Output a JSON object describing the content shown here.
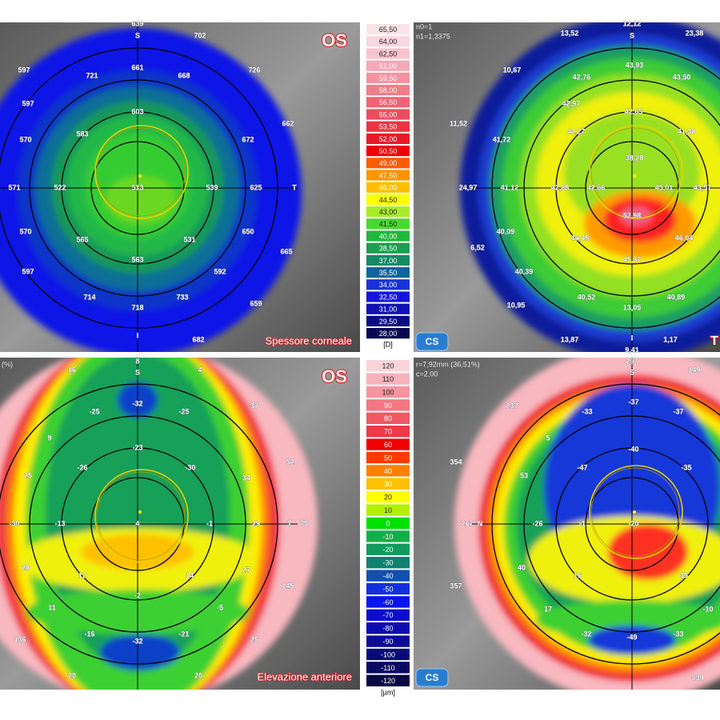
{
  "maps": {
    "top_left": {
      "eye_label": "OS",
      "title": "Spessore corneale",
      "axis_labels": {
        "top": "S",
        "right": "T",
        "bottom": "I",
        "top_value": "639"
      },
      "values": [
        "702",
        "597",
        "721",
        "661",
        "668",
        "726",
        "597",
        "603",
        "662",
        "570",
        "583",
        "672",
        "571",
        "522",
        "513",
        "539",
        "625",
        "570",
        "565",
        "531",
        "650",
        "597",
        "563",
        "665",
        "592",
        "714",
        "718",
        "733",
        "659",
        "682"
      ]
    },
    "top_right": {
      "info_lines": [
        "n0=1",
        "n1=1,3375"
      ],
      "axis_labels": {
        "top": "S",
        "bottom": "I",
        "right": "T",
        "top_value": "12,12",
        "bottom_value": "9,41",
        "left_value": "24,97"
      },
      "values": [
        "13,52",
        "23,38",
        "10,67",
        "42,76",
        "43,93",
        "43,50",
        "42,97",
        "42,65",
        "11,52",
        "41,72",
        "42,27",
        "41,38",
        "38,28",
        "41,12",
        "42,88",
        "42,66",
        "45,01",
        "43,57",
        "52,98",
        "40,09",
        "46,49",
        "46,04",
        "6,52",
        "45,37",
        "40,39",
        "40,52",
        "40,89",
        "13,05",
        "10,95",
        "13,87",
        "1,17"
      ],
      "logo": "CS"
    },
    "bottom_left": {
      "eye_label": "OS",
      "title": "Elevazione anteriore",
      "info_lines": [
        "(%)"
      ],
      "axis_labels": {
        "top": "S",
        "right": "T",
        "top_value": "8",
        "right_value": "75"
      },
      "values": [
        "16",
        "4",
        "-25",
        "-32",
        "-25",
        "37",
        "9",
        "-23",
        "52",
        "25",
        "-26",
        "-30",
        "34",
        "-30",
        "-13",
        "4",
        "-1",
        "29",
        "28",
        "12",
        "14",
        "27",
        "145",
        "11",
        "-2",
        "-5",
        "-16",
        "-32",
        "-21",
        "25",
        "136",
        "20",
        "20"
      ]
    },
    "bottom_right": {
      "info_lines": [
        "r=7,92mm (36,51%)",
        "c=2,00"
      ],
      "axis_labels": {
        "top": "S",
        "left": "N",
        "top_value": "297",
        "left_value": "267"
      },
      "values": [
        "237",
        "149",
        "-33",
        "-37",
        "-37",
        "5",
        "-40",
        "354",
        "53",
        "-47",
        "-35",
        "-26",
        "-1",
        "-20",
        "40",
        "16",
        "35",
        "357",
        "17",
        "-49",
        "-33",
        "-32",
        "-10",
        "339"
      ],
      "logo": "CS"
    }
  },
  "scales": {
    "dioptric": {
      "unit": "[D]",
      "steps": [
        {
          "label": "65,50",
          "color": "#fbe4ea"
        },
        {
          "label": "64,00",
          "color": "#fad6de"
        },
        {
          "label": "62,50",
          "color": "#f8c4cf"
        },
        {
          "label": "61,00",
          "color": "#f7a8b6"
        },
        {
          "label": "59,50",
          "color": "#f5929f"
        },
        {
          "label": "58,00",
          "color": "#f27c8a"
        },
        {
          "label": "56,50",
          "color": "#f06474"
        },
        {
          "label": "55,00",
          "color": "#ee4c5c"
        },
        {
          "label": "53,50",
          "color": "#ec3444"
        },
        {
          "label": "52,00",
          "color": "#e81a28"
        },
        {
          "label": "50,50",
          "color": "#f00000"
        },
        {
          "label": "49,00",
          "color": "#ff5a00"
        },
        {
          "label": "47,50",
          "color": "#ff9400"
        },
        {
          "label": "46,00",
          "color": "#ffbe00"
        },
        {
          "label": "44,50",
          "color": "#ffff00"
        },
        {
          "label": "43,00",
          "color": "#a8ec2a"
        },
        {
          "label": "41,50",
          "color": "#4ad830"
        },
        {
          "label": "40,00",
          "color": "#20b83a"
        },
        {
          "label": "38,50",
          "color": "#1aa050"
        },
        {
          "label": "37,00",
          "color": "#138a64"
        },
        {
          "label": "35,50",
          "color": "#1064a0"
        },
        {
          "label": "34,00",
          "color": "#1832d8"
        },
        {
          "label": "32,50",
          "color": "#1414e0"
        },
        {
          "label": "31,00",
          "color": "#1010b4"
        },
        {
          "label": "29,50",
          "color": "#0c0c84"
        },
        {
          "label": "28,00",
          "color": "#080850"
        }
      ]
    },
    "elevation": {
      "unit": "[µm]",
      "steps": [
        {
          "label": "120",
          "color": "#fbd4da"
        },
        {
          "label": "110",
          "color": "#f8b2bc"
        },
        {
          "label": "100",
          "color": "#f6949f"
        },
        {
          "label": "90",
          "color": "#f37682"
        },
        {
          "label": "80",
          "color": "#f05864"
        },
        {
          "label": "70",
          "color": "#ec3a46"
        },
        {
          "label": "60",
          "color": "#f00000"
        },
        {
          "label": "50",
          "color": "#ff3c00"
        },
        {
          "label": "40",
          "color": "#ff8000"
        },
        {
          "label": "30",
          "color": "#ffc000"
        },
        {
          "label": "20",
          "color": "#ffff00"
        },
        {
          "label": "10",
          "color": "#b4f000"
        },
        {
          "label": "0",
          "color": "#00e000"
        },
        {
          "label": "-10",
          "color": "#10b048"
        },
        {
          "label": "-20",
          "color": "#109a5c"
        },
        {
          "label": "-30",
          "color": "#108070"
        },
        {
          "label": "-40",
          "color": "#1050b0"
        },
        {
          "label": "-50",
          "color": "#1030e0"
        },
        {
          "label": "-60",
          "color": "#0a14f0"
        },
        {
          "label": "-70",
          "color": "#0c0cd0"
        },
        {
          "label": "-80",
          "color": "#0c0cb0"
        },
        {
          "label": "-90",
          "color": "#0c0c98"
        },
        {
          "label": "-100",
          "color": "#0a0a78"
        },
        {
          "label": "-110",
          "color": "#080860"
        },
        {
          "label": "-120",
          "color": "#060640"
        }
      ]
    }
  }
}
